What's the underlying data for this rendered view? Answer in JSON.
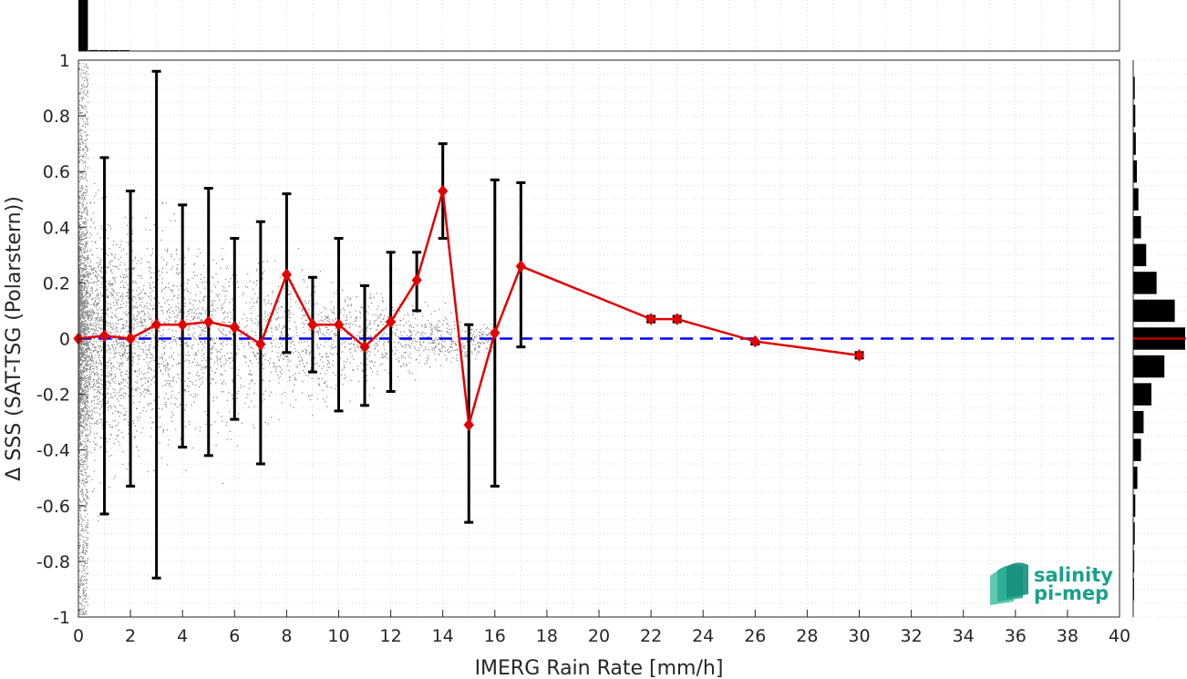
{
  "chart_data": {
    "type": "scatter",
    "xlabel": "IMERG Rain Rate [mm/h]",
    "ylabel": "Δ SSS (SAT-TSG (Polarstern))",
    "xlim": [
      0,
      40
    ],
    "ylim": [
      -1,
      1
    ],
    "x_ticks": [
      "0",
      "2",
      "4",
      "6",
      "8",
      "10",
      "12",
      "14",
      "16",
      "18",
      "20",
      "22",
      "24",
      "26",
      "28",
      "30",
      "32",
      "34",
      "36",
      "38",
      "40"
    ],
    "y_ticks": [
      "1",
      "0.8",
      "0.6",
      "0.4",
      "0.2",
      "0",
      "-0.2",
      "-0.4",
      "-0.6",
      "-0.8",
      "-1"
    ],
    "grid": true,
    "zero_line": {
      "y": 0,
      "color": "#0000ff",
      "style": "dashed"
    },
    "scatter_color": "#808080",
    "mean_series": {
      "color": "#e00000",
      "x": [
        0,
        1,
        2,
        3,
        4,
        5,
        6,
        7,
        8,
        9,
        10,
        11,
        12,
        13,
        14,
        15,
        16,
        17,
        22,
        23,
        26,
        30
      ],
      "y": [
        0.0,
        0.01,
        0.0,
        0.05,
        0.05,
        0.06,
        0.04,
        -0.02,
        0.23,
        0.05,
        0.05,
        -0.03,
        0.06,
        0.21,
        0.53,
        -0.31,
        0.02,
        0.26,
        0.07,
        0.07,
        -0.01,
        -0.06
      ],
      "err_low": [
        0.0,
        -0.63,
        -0.53,
        -0.86,
        -0.39,
        -0.42,
        -0.29,
        -0.45,
        -0.05,
        -0.12,
        -0.26,
        -0.24,
        -0.19,
        0.1,
        0.36,
        -0.66,
        -0.53,
        -0.03,
        0.06,
        0.06,
        -0.02,
        -0.07
      ],
      "err_high": [
        0.0,
        0.65,
        0.53,
        0.96,
        0.48,
        0.54,
        0.36,
        0.42,
        0.52,
        0.22,
        0.36,
        0.19,
        0.31,
        0.31,
        0.7,
        0.05,
        0.57,
        0.56,
        0.08,
        0.08,
        -0.01,
        -0.05
      ]
    },
    "top_histogram": {
      "bin_width": 1,
      "relative_counts": [
        1.0,
        0.02,
        0.01,
        0.005,
        0.004
      ]
    },
    "right_histogram": {
      "bin_centers": [
        0.9,
        0.8,
        0.7,
        0.6,
        0.5,
        0.4,
        0.3,
        0.2,
        0.1,
        0.0,
        -0.1,
        -0.2,
        -0.3,
        -0.4,
        -0.5,
        -0.6,
        -0.7,
        -0.8,
        -0.9
      ],
      "relative_counts": [
        0.03,
        0.04,
        0.05,
        0.07,
        0.1,
        0.15,
        0.25,
        0.45,
        0.8,
        1.0,
        0.6,
        0.35,
        0.2,
        0.15,
        0.08,
        0.04,
        0.03,
        0.02,
        0.01
      ],
      "mean_line_color": "#e00000"
    }
  },
  "logo": {
    "line1": "salinity",
    "line2": "pi-mep",
    "color": "#1aa08a"
  }
}
